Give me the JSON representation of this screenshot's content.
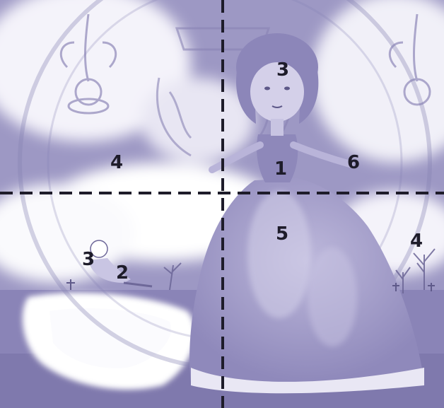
{
  "scene": {
    "subject": "lady-in-crinoline-gown",
    "palette": {
      "lavender": "#9d98c4",
      "deep_lavender": "#7f79ad",
      "pale_lavender": "#d2cfe7",
      "highlight": "#ffffff",
      "ink": "#1e1c2a"
    }
  },
  "markers": {
    "m1": "1",
    "m2": "2",
    "m3_top": "3",
    "m3_bottom": "3",
    "m4_left": "4",
    "m4_right": "4",
    "m5": "5",
    "m6": "6"
  }
}
